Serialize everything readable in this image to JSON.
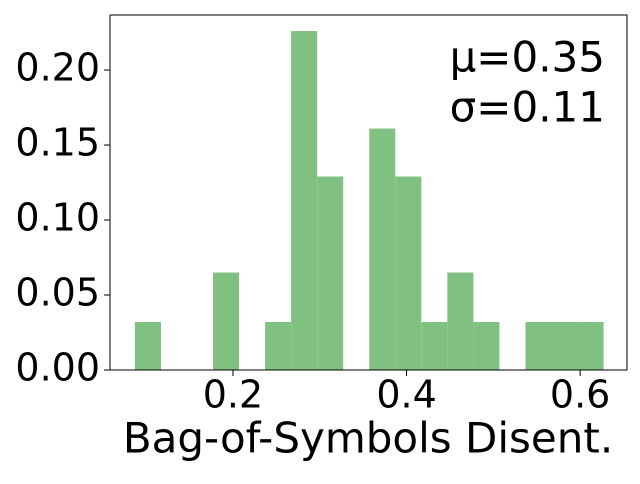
{
  "chart_data": {
    "type": "histogram",
    "xlabel": "Bag-of-Symbols Disent.",
    "annotations": [
      "μ=0.35",
      "σ=0.11"
    ],
    "bins": [
      0.087,
      0.117,
      0.147,
      0.177,
      0.207,
      0.237,
      0.267,
      0.297,
      0.327,
      0.357,
      0.387,
      0.417,
      0.447,
      0.477,
      0.507,
      0.537,
      0.567,
      0.597,
      0.627
    ],
    "values": [
      0.032,
      0,
      0,
      0.065,
      0,
      0.032,
      0.226,
      0.129,
      0,
      0.161,
      0.129,
      0.032,
      0.065,
      0.032,
      0,
      0.032,
      0.032,
      0.032
    ],
    "color": "#80c080",
    "xlim": [
      0.0583,
      0.654
    ],
    "ylim": [
      0,
      0.2367
    ],
    "xticks": [
      0.2,
      0.4,
      0.6
    ],
    "yticks": [
      {
        "value": 0,
        "label": "0.00"
      },
      {
        "value": 0.05,
        "label": "0.05"
      },
      {
        "value": 0.1,
        "label": "0.10"
      },
      {
        "value": 0.15,
        "label": "0.15"
      },
      {
        "value": 0.2,
        "label": "0.20"
      }
    ]
  }
}
